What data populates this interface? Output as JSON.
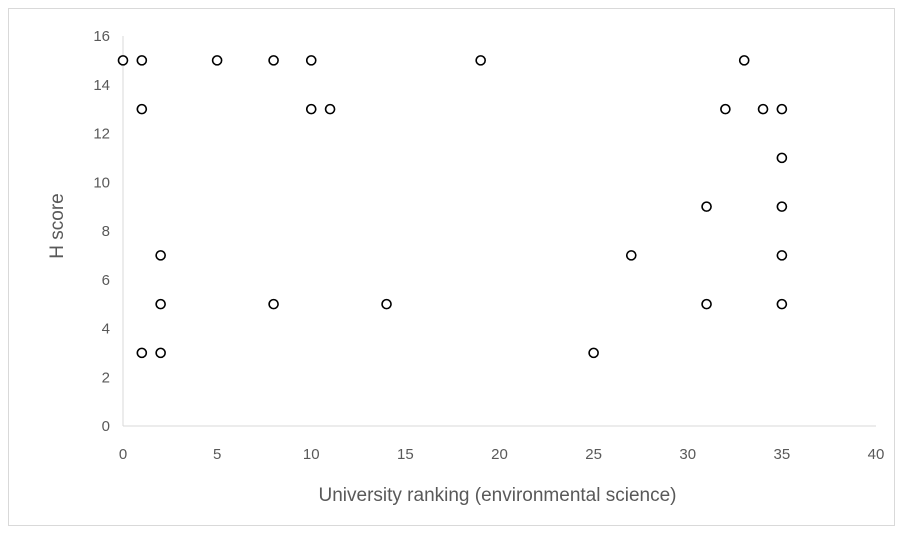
{
  "chart_data": {
    "type": "scatter",
    "title": "",
    "xlabel": "University ranking (environmental science)",
    "ylabel": "H score",
    "xlim": [
      0,
      40
    ],
    "ylim": [
      0,
      16
    ],
    "x_ticks": [
      0,
      5,
      10,
      15,
      20,
      25,
      30,
      35,
      40
    ],
    "y_ticks": [
      0,
      2,
      4,
      6,
      8,
      10,
      12,
      14,
      16
    ],
    "grid": false,
    "legend": "none",
    "marker": "hollow-circle",
    "marker_color": "#000000",
    "axis_color": "#d9d9d9",
    "text_color": "#595959",
    "points": [
      {
        "x": 0,
        "y": 15
      },
      {
        "x": 1,
        "y": 15
      },
      {
        "x": 5,
        "y": 15
      },
      {
        "x": 8,
        "y": 15
      },
      {
        "x": 10,
        "y": 15
      },
      {
        "x": 19,
        "y": 15
      },
      {
        "x": 33,
        "y": 15
      },
      {
        "x": 1,
        "y": 13
      },
      {
        "x": 10,
        "y": 13
      },
      {
        "x": 11,
        "y": 13
      },
      {
        "x": 32,
        "y": 13
      },
      {
        "x": 34,
        "y": 13
      },
      {
        "x": 35,
        "y": 13
      },
      {
        "x": 35,
        "y": 11
      },
      {
        "x": 31,
        "y": 9
      },
      {
        "x": 35,
        "y": 9
      },
      {
        "x": 2,
        "y": 7
      },
      {
        "x": 27,
        "y": 7
      },
      {
        "x": 35,
        "y": 7
      },
      {
        "x": 2,
        "y": 5
      },
      {
        "x": 8,
        "y": 5
      },
      {
        "x": 14,
        "y": 5
      },
      {
        "x": 31,
        "y": 5
      },
      {
        "x": 35,
        "y": 5
      },
      {
        "x": 1,
        "y": 3
      },
      {
        "x": 2,
        "y": 3
      },
      {
        "x": 25,
        "y": 3
      }
    ]
  }
}
